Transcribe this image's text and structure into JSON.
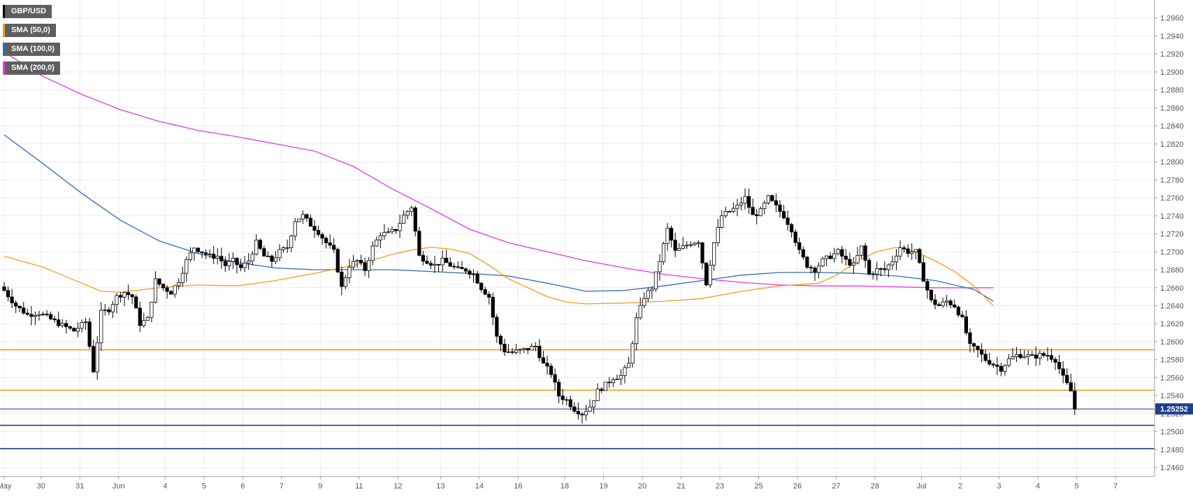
{
  "chart_data": {
    "type": "candlestick",
    "title": "GBP/USD",
    "legend": [
      {
        "label": "GBP/USD",
        "color": "#000000"
      },
      {
        "label": "SMA (50,0)",
        "color": "#f59a23"
      },
      {
        "label": "SMA (100,0)",
        "color": "#2f6db5"
      },
      {
        "label": "SMA (200,0)",
        "color": "#e33ae3"
      }
    ],
    "legend_position": "top-left",
    "ylim": [
      1.245,
      1.298
    ],
    "y_ticks": [
      "1.2960",
      "1.2940",
      "1.2920",
      "1.2900",
      "1.2880",
      "1.2860",
      "1.2840",
      "1.2820",
      "1.2800",
      "1.2780",
      "1.2760",
      "1.2740",
      "1.2720",
      "1.2700",
      "1.2680",
      "1.2660",
      "1.2640",
      "1.2620",
      "1.2600",
      "1.2580",
      "1.2560",
      "1.2540",
      "1.2520",
      "1.2500",
      "1.2480",
      "1.2460"
    ],
    "x_labels": [
      "May",
      "30",
      "31",
      "Jun",
      "4",
      "5",
      "6",
      "7",
      "9",
      "11",
      "12",
      "13",
      "14",
      "16",
      "18",
      "19",
      "20",
      "21",
      "23",
      "25",
      "26",
      "27",
      "28",
      "Jul",
      "2",
      "3",
      "4",
      "5",
      "7"
    ],
    "x_label_index": [
      0,
      9.5,
      19.5,
      29.5,
      41.5,
      51.5,
      61.5,
      71.5,
      81.5,
      91.5,
      101.5,
      112.5,
      122.5,
      132.5,
      144.5,
      154.5,
      164.5,
      174.5,
      184.5,
      194.5,
      204.5,
      214.5,
      224.5,
      236.5,
      246.5,
      256.5,
      266.5,
      276.5,
      286.5
    ],
    "grid": true,
    "current_price": "1.25252",
    "current_price_value": 1.25252,
    "horizontal_levels": [
      {
        "value": 1.2591,
        "color": "#f59a23"
      },
      {
        "value": 1.2546,
        "color": "#f59a23"
      },
      {
        "value": 1.2507,
        "color": "#1f3f8f"
      },
      {
        "value": 1.2481,
        "color": "#1f3f8f"
      }
    ],
    "candle_count": 288,
    "close_anchors": [
      [
        0,
        1.2657
      ],
      [
        3,
        1.264
      ],
      [
        6,
        1.263
      ],
      [
        9,
        1.2632
      ],
      [
        12,
        1.2625
      ],
      [
        15,
        1.2618
      ],
      [
        18,
        1.2612
      ],
      [
        21,
        1.2622
      ],
      [
        23,
        1.2568
      ],
      [
        25,
        1.2632
      ],
      [
        27,
        1.2636
      ],
      [
        29,
        1.265
      ],
      [
        31,
        1.2655
      ],
      [
        33,
        1.265
      ],
      [
        35,
        1.262
      ],
      [
        37,
        1.2625
      ],
      [
        39,
        1.2668
      ],
      [
        41,
        1.266
      ],
      [
        43,
        1.2655
      ],
      [
        45,
        1.2668
      ],
      [
        47,
        1.269
      ],
      [
        49,
        1.2705
      ],
      [
        51,
        1.27
      ],
      [
        53,
        1.2695
      ],
      [
        55,
        1.2695
      ],
      [
        57,
        1.2685
      ],
      [
        59,
        1.269
      ],
      [
        61,
        1.2682
      ],
      [
        63,
        1.269
      ],
      [
        65,
        1.271
      ],
      [
        67,
        1.2695
      ],
      [
        69,
        1.269
      ],
      [
        71,
        1.27
      ],
      [
        73,
        1.2705
      ],
      [
        75,
        1.2735
      ],
      [
        77,
        1.274
      ],
      [
        79,
        1.273
      ],
      [
        81,
        1.2722
      ],
      [
        83,
        1.271
      ],
      [
        85,
        1.27
      ],
      [
        87,
        1.266
      ],
      [
        89,
        1.2685
      ],
      [
        91,
        1.269
      ],
      [
        93,
        1.268
      ],
      [
        95,
        1.2705
      ],
      [
        97,
        1.272
      ],
      [
        99,
        1.272
      ],
      [
        101,
        1.2725
      ],
      [
        103,
        1.274
      ],
      [
        105,
        1.275
      ],
      [
        107,
        1.2695
      ],
      [
        109,
        1.269
      ],
      [
        111,
        1.2685
      ],
      [
        113,
        1.269
      ],
      [
        115,
        1.2685
      ],
      [
        117,
        1.268
      ],
      [
        119,
        1.268
      ],
      [
        121,
        1.2675
      ],
      [
        123,
        1.266
      ],
      [
        125,
        1.265
      ],
      [
        127,
        1.2605
      ],
      [
        129,
        1.259
      ],
      [
        131,
        1.2588
      ],
      [
        133,
        1.259
      ],
      [
        135,
        1.2592
      ],
      [
        137,
        1.2595
      ],
      [
        139,
        1.2575
      ],
      [
        141,
        1.2565
      ],
      [
        143,
        1.254
      ],
      [
        145,
        1.2535
      ],
      [
        147,
        1.2525
      ],
      [
        149,
        1.252
      ],
      [
        151,
        1.2528
      ],
      [
        153,
        1.2545
      ],
      [
        155,
        1.2552
      ],
      [
        157,
        1.256
      ],
      [
        159,
        1.2562
      ],
      [
        161,
        1.2575
      ],
      [
        163,
        1.2625
      ],
      [
        165,
        1.265
      ],
      [
        167,
        1.266
      ],
      [
        169,
        1.269
      ],
      [
        171,
        1.2725
      ],
      [
        173,
        1.27
      ],
      [
        175,
        1.2705
      ],
      [
        177,
        1.271
      ],
      [
        179,
        1.2712
      ],
      [
        181,
        1.2665
      ],
      [
        183,
        1.271
      ],
      [
        185,
        1.274
      ],
      [
        187,
        1.2745
      ],
      [
        189,
        1.275
      ],
      [
        191,
        1.276
      ],
      [
        193,
        1.274
      ],
      [
        195,
        1.2745
      ],
      [
        197,
        1.276
      ],
      [
        199,
        1.275
      ],
      [
        201,
        1.274
      ],
      [
        203,
        1.2725
      ],
      [
        205,
        1.27
      ],
      [
        207,
        1.2685
      ],
      [
        209,
        1.268
      ],
      [
        211,
        1.269
      ],
      [
        213,
        1.2695
      ],
      [
        215,
        1.27
      ],
      [
        217,
        1.269
      ],
      [
        219,
        1.2685
      ],
      [
        221,
        1.2705
      ],
      [
        223,
        1.2675
      ],
      [
        225,
        1.268
      ],
      [
        227,
        1.268
      ],
      [
        229,
        1.269
      ],
      [
        231,
        1.2705
      ],
      [
        233,
        1.27
      ],
      [
        235,
        1.27
      ],
      [
        237,
        1.267
      ],
      [
        239,
        1.2645
      ],
      [
        241,
        1.264
      ],
      [
        243,
        1.2645
      ],
      [
        245,
        1.264
      ],
      [
        247,
        1.2625
      ],
      [
        249,
        1.2595
      ],
      [
        251,
        1.259
      ],
      [
        253,
        1.258
      ],
      [
        255,
        1.2575
      ],
      [
        257,
        1.257
      ],
      [
        259,
        1.258
      ],
      [
        261,
        1.2585
      ],
      [
        263,
        1.2585
      ],
      [
        265,
        1.2583
      ],
      [
        267,
        1.2585
      ],
      [
        269,
        1.2585
      ],
      [
        271,
        1.258
      ],
      [
        273,
        1.256
      ],
      [
        275,
        1.2545
      ],
      [
        276,
        1.25252
      ]
    ],
    "sma50": [
      [
        0,
        1.2695
      ],
      [
        10,
        1.2683
      ],
      [
        20,
        1.2665
      ],
      [
        25,
        1.2656
      ],
      [
        30,
        1.2655
      ],
      [
        40,
        1.266
      ],
      [
        50,
        1.2663
      ],
      [
        60,
        1.2662
      ],
      [
        70,
        1.2668
      ],
      [
        80,
        1.2676
      ],
      [
        90,
        1.2685
      ],
      [
        100,
        1.2697
      ],
      [
        105,
        1.2702
      ],
      [
        110,
        1.2705
      ],
      [
        115,
        1.2703
      ],
      [
        120,
        1.2698
      ],
      [
        125,
        1.2685
      ],
      [
        130,
        1.267
      ],
      [
        135,
        1.266
      ],
      [
        140,
        1.265
      ],
      [
        145,
        1.2644
      ],
      [
        150,
        1.2642
      ],
      [
        160,
        1.2643
      ],
      [
        170,
        1.2645
      ],
      [
        180,
        1.2648
      ],
      [
        190,
        1.2656
      ],
      [
        200,
        1.2662
      ],
      [
        210,
        1.2665
      ],
      [
        215,
        1.2675
      ],
      [
        220,
        1.269
      ],
      [
        225,
        1.27
      ],
      [
        230,
        1.2705
      ],
      [
        235,
        1.27
      ],
      [
        240,
        1.269
      ],
      [
        245,
        1.2678
      ],
      [
        250,
        1.2662
      ],
      [
        255,
        1.264
      ]
    ],
    "sma100": [
      [
        0,
        1.283
      ],
      [
        10,
        1.2798
      ],
      [
        20,
        1.2765
      ],
      [
        30,
        1.2735
      ],
      [
        40,
        1.2712
      ],
      [
        50,
        1.2698
      ],
      [
        60,
        1.2688
      ],
      [
        70,
        1.2682
      ],
      [
        80,
        1.268
      ],
      [
        90,
        1.268
      ],
      [
        100,
        1.268
      ],
      [
        110,
        1.2678
      ],
      [
        120,
        1.2676
      ],
      [
        130,
        1.2673
      ],
      [
        140,
        1.2665
      ],
      [
        150,
        1.2656
      ],
      [
        160,
        1.2657
      ],
      [
        170,
        1.2662
      ],
      [
        180,
        1.2668
      ],
      [
        190,
        1.2674
      ],
      [
        200,
        1.2677
      ],
      [
        210,
        1.2677
      ],
      [
        220,
        1.2676
      ],
      [
        230,
        1.2673
      ],
      [
        240,
        1.2668
      ],
      [
        250,
        1.2658
      ],
      [
        255,
        1.2645
      ]
    ],
    "sma200": [
      [
        0,
        1.2922
      ],
      [
        10,
        1.2895
      ],
      [
        20,
        1.2875
      ],
      [
        30,
        1.2858
      ],
      [
        40,
        1.2845
      ],
      [
        50,
        1.2835
      ],
      [
        60,
        1.2828
      ],
      [
        70,
        1.282
      ],
      [
        80,
        1.2812
      ],
      [
        90,
        1.2795
      ],
      [
        100,
        1.277
      ],
      [
        110,
        1.2748
      ],
      [
        120,
        1.2725
      ],
      [
        130,
        1.271
      ],
      [
        140,
        1.27
      ],
      [
        150,
        1.269
      ],
      [
        160,
        1.2682
      ],
      [
        170,
        1.2675
      ],
      [
        180,
        1.267
      ],
      [
        190,
        1.2666
      ],
      [
        200,
        1.2663
      ],
      [
        210,
        1.2662
      ],
      [
        220,
        1.2662
      ],
      [
        230,
        1.2661
      ],
      [
        240,
        1.266
      ],
      [
        250,
        1.266
      ],
      [
        255,
        1.266
      ]
    ]
  }
}
